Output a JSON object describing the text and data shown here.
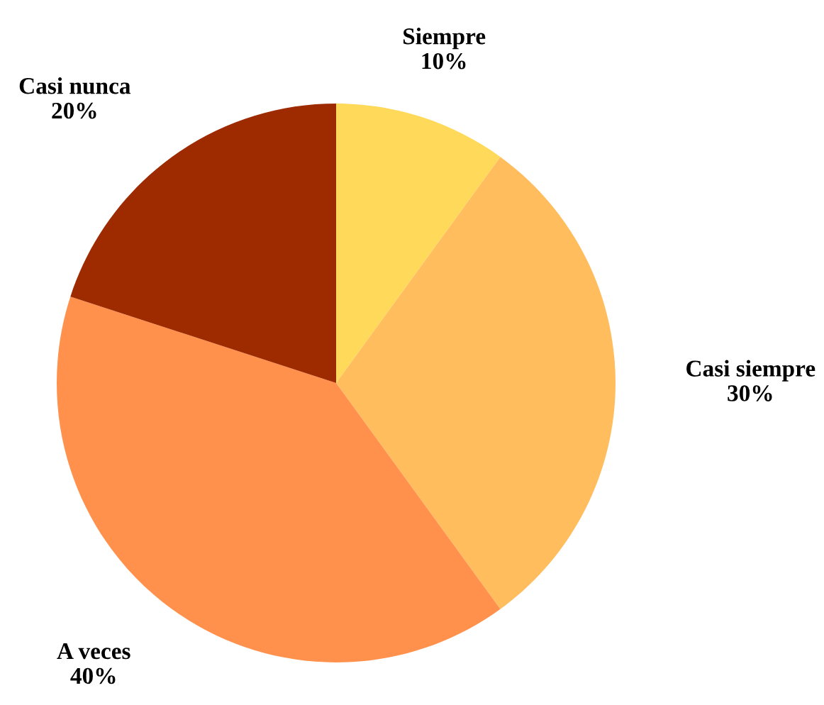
{
  "chart_data": {
    "type": "pie",
    "categories": [
      "Siempre",
      "Casi siempre",
      "A veces",
      "Casi nunca"
    ],
    "values": [
      10,
      30,
      40,
      20
    ],
    "value_labels": [
      "10%",
      "30%",
      "40%",
      "20%"
    ],
    "colors": [
      "#ffd95a",
      "#ffbd5e",
      "#ff914d",
      "#9e2a00"
    ]
  }
}
